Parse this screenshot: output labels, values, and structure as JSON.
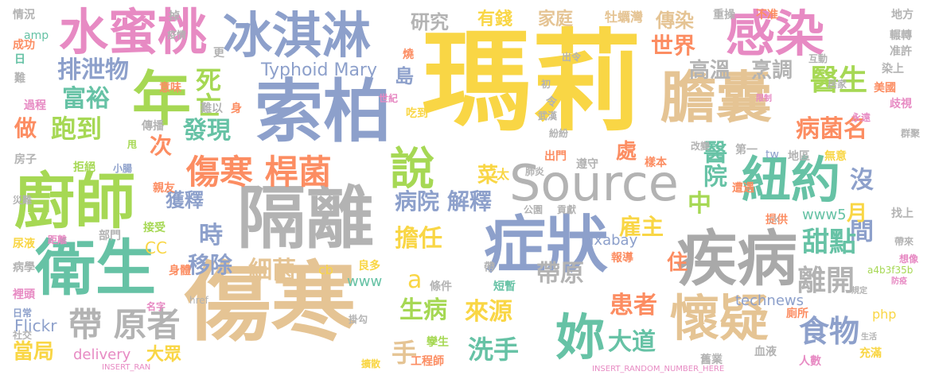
{
  "words": {
    "mali": "瑪莉",
    "shangHan": "傷寒",
    "suoBai": "索柏",
    "geLi": "隔離",
    "zhengZhuang": "症狀",
    "chuShi": "廚師",
    "weiSheng": "衛生",
    "jiBing": "疾病",
    "source": "Source",
    "danNang": "膽囊",
    "ganRan": "感染",
    "shuiMiTao": "水蜜桃",
    "bingQiLin": "冰淇淋",
    "nian": "年",
    "huaiYi": "懷疑",
    "niuYue": "紐約",
    "shuo": "說",
    "ni": "妳",
    "shangHanGanJun": "傷寒 桿菌",
    "daiYuanZhe": "帶 原者",
    "paiXieWu": "排泄物",
    "fuYu": "富裕",
    "paoDao": "跑到",
    "siWang": "死亡",
    "faXian": "發現",
    "zuo": "做",
    "ci": "次",
    "yanJiu": "研究",
    "youQian": "有錢",
    "jiaTing": "家庭",
    "chuanRan": "傳染",
    "shiJie": "世界",
    "gaoWen": "高溫",
    "pengTiao": "烹調",
    "yiSheng": "醫生",
    "bingJunMing": "病菌名",
    "yiYuan": "醫院",
    "zhong": "中",
    "meiJian": "沒 間",
    "tianDian": "甜點",
    "liKai": "離開",
    "shiWu": "食物",
    "daiYuan": "帶原",
    "huanZhe": "患者",
    "daDao": "大道",
    "xiShou": "洗手",
    "laiYuan": "來源",
    "shengBing": "生病",
    "danRen": "擔任",
    "shi": "時",
    "yiChu": "移除",
    "huoShi": "獲釋",
    "bingYuan": "病院",
    "jieShi": "解釋",
    "xiJun": "細菌",
    "cai": "菜",
    "yuZhu": "雇主",
    "yue": "月",
    "zhu": "住",
    "typhoid": "Typhoid Mary",
    "pixabay": "pixabay",
    "technews": "technews",
    "www5": "www5",
    "www": "www",
    "cc": "CC",
    "cb": "cb",
    "flickr": "Flickr",
    "delivery": "delivery",
    "dangJu": "當局",
    "daZhong": "大眾",
    "shou": "手",
    "dao": "島",
    "a": "a",
    "chu": "處",
    "tai": "太",
    "zhongYe": "重操",
    "buZhun": "不准",
    "muLiWan": "牡蠣灣",
    "difang": "地方",
    "qingkuang": "情況",
    "chengGong": "成功",
    "ri": "日",
    "nan": "難",
    "guoCheng": "過程",
    "amp": "amp",
    "diao": "掉",
    "yiQing": "疫情",
    "yiWei": "意味",
    "geng": "更",
    "shao": "燒",
    "shiJi": "世紀",
    "chiDao": "吃到",
    "nanYi": "難以",
    "shen": "身",
    "chuanBo": "傳播",
    "shuai": "甩",
    "fangZi": "房子",
    "juJue": "拒絕",
    "xiaoChang": "小腸",
    "qinYou": "親友",
    "jieShou": "接受",
    "buMen": "部門",
    "shenTi": "身體",
    "mingZi": "名字",
    "niaoYe": "尿液",
    "bingXue": "病學",
    "liTou": "裡頭",
    "riChang": "日常",
    "sheJiao": "社交",
    "juLi": "距離",
    "zaiNan": "災難",
    "chuMen": "出門",
    "zunShou": "遵守",
    "diYi": "第一",
    "yangBen": "樣本",
    "gongYuan": "公園",
    "gongXian": "貢獻",
    "zaoYu": "遭遇",
    "tiGong": "提供",
    "diQu": "地區",
    "wuXu": "無意",
    "baoDao": "報導",
    "cesuo": "廁所",
    "xueYe": "血液",
    "jiuYe": "舊業",
    "renShu": "人數",
    "chongMan": "充滿",
    "zhaoShang": "找上",
    "daiLai": "帶來",
    "xiangXiang": "想像",
    "meiGuo": "美國",
    "qiShi": "歧視",
    "ranShang": "染上",
    "zhunXu": "准許",
    "lunGang": "輾轉",
    "gongCheng": "工程師",
    "luanSheng": "孿生",
    "kuoSan": "擴散",
    "liangDuo": "良多",
    "tiaoJian": "條件",
    "duanZan": "短暫",
    "guaGou": "掛勾",
    "dai": "帶",
    "chuLing": "出令",
    "wuHan": "武漢",
    "fenFen": "紛紛",
    "ling": "令",
    "gaiBian": "改變",
    "php": "php",
    "href": "href",
    "ck": "ck",
    "tw": "tw",
    "a4b3": "a4b3f35b",
    "insert": "INSERT_RANDOM_NUMBER_HERE",
    "insertRan": "INSERT_RAN",
    "huDong": "互動",
    "juJia": "居家",
    "yongYuan": "永遠",
    "qunJu": "群聚",
    "feiYan": "肺炎",
    "chu2": "初",
    "tiny1": "生活",
    "tiny2": "限制",
    "tiny3": "規定",
    "tiny4": "防疫"
  }
}
